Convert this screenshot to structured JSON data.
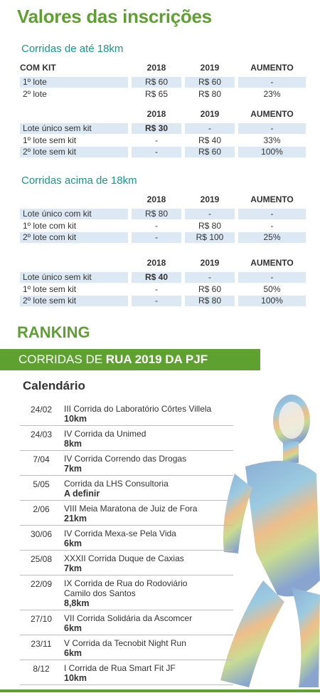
{
  "header": {
    "title": "Valores das inscrições"
  },
  "sections": [
    {
      "subtitle": "Corridas de até 18km",
      "tables": [
        {
          "header": [
            "COM KIT",
            "2018",
            "2019",
            "AUMENTO"
          ],
          "rows": [
            [
              "1º lote",
              "R$ 60",
              "R$ 60",
              "-"
            ],
            [
              "2º lote",
              "R$ 65",
              "R$ 80",
              "23%"
            ]
          ]
        },
        {
          "header": [
            "",
            "2018",
            "2019",
            "AUMENTO"
          ],
          "rows": [
            [
              "Lote único sem kit",
              "R$ 30",
              "-",
              "-"
            ],
            [
              "1º lote sem kit",
              "-",
              "R$ 40",
              "33%"
            ],
            [
              "2º lote sem kit",
              "-",
              "R$ 60",
              "100%"
            ]
          ]
        }
      ]
    },
    {
      "subtitle": "Corridas acima de 18km",
      "tables": [
        {
          "header": [
            "",
            "2018",
            "2019",
            "AUMENTO"
          ],
          "rows": [
            [
              "Lote único com kit",
              "R$ 80",
              "-",
              "-"
            ],
            [
              "1º lote com kit",
              "-",
              "R$ 80",
              "-"
            ],
            [
              "2º lote com kit",
              "-",
              "R$ 100",
              "25%"
            ]
          ]
        },
        {
          "header": [
            "",
            "2018",
            "2019",
            "AUMENTO"
          ],
          "rows": [
            [
              "Lote único sem kit",
              "R$ 40",
              "-",
              "-"
            ],
            [
              "1º lote sem kit",
              "-",
              "R$ 60",
              "50%"
            ],
            [
              "2º lote sem kit",
              "-",
              "R$ 80",
              "100%"
            ]
          ]
        }
      ]
    }
  ],
  "ranking": {
    "title": "RANKING",
    "banner": [
      "CORRIDAS DE ",
      "RUA 2019 DA PJF"
    ],
    "calendar_title": "Calendário",
    "events": [
      {
        "date": "24/02",
        "name": "III Corrida do Laboratório Côrtes Villela",
        "distance": "10km"
      },
      {
        "date": "24/03",
        "name": "IV Corrida da Unimed",
        "distance": "8km"
      },
      {
        "date": "7/04",
        "name": "IV Corrida Correndo das Drogas",
        "distance": "7km"
      },
      {
        "date": "5/05",
        "name": "Corrida da LHS Consultoria",
        "distance": "A definir"
      },
      {
        "date": "2/06",
        "name": "VIII Meia Maratona de Juiz de Fora",
        "distance": "21km"
      },
      {
        "date": "30/06",
        "name": "IV Corrida Mexa-se Pela Vida",
        "distance": "6km"
      },
      {
        "date": "25/08",
        "name": "XXXII Corrida Duque de Caxias",
        "distance": "7km"
      },
      {
        "date": "22/09",
        "name": "IX Corrida de Rua do Rodoviário\nCamilo dos Santos",
        "distance": "8,8km"
      },
      {
        "date": "27/10",
        "name": "VII Corrida Solidária da Ascomcer",
        "distance": "6km"
      },
      {
        "date": "23/11",
        "name": "V Corrida da Tecnobit Night Run",
        "distance": "6km"
      },
      {
        "date": "8/12",
        "name": "I Corrida de Rua Smart Fit JF",
        "distance": "10km"
      }
    ]
  }
}
